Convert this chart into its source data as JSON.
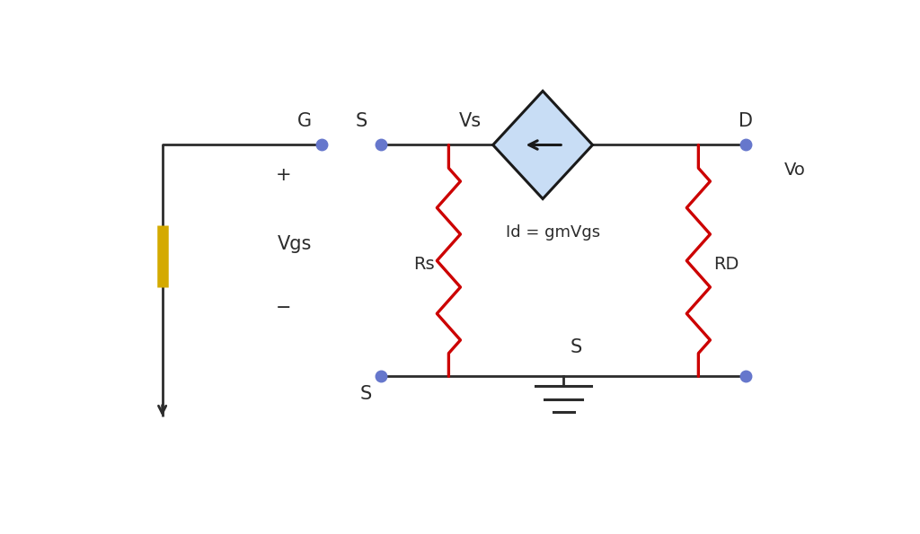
{
  "bg_color": "#ffffff",
  "wire_color": "#2c2c2c",
  "resistor_color": "#cc0000",
  "dot_color": "#6677cc",
  "diamond_fill": "#c8ddf5",
  "diamond_edge": "#1a1a1a",
  "arrow_color": "#1a1a1a",
  "voltage_source_color": "#d4aa00",
  "figsize": [
    10.24,
    5.95
  ],
  "dpi": 100,
  "xlim": [
    0,
    10.24
  ],
  "ylim": [
    0,
    5.95
  ]
}
